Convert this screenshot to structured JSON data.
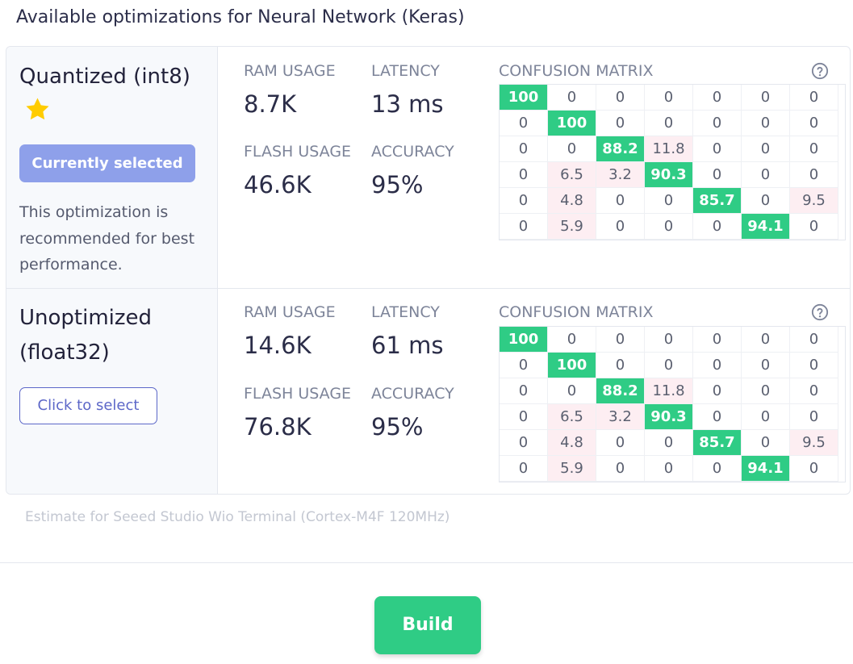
{
  "page": {
    "title": "Available optimizations for Neural Network (Keras)"
  },
  "labels": {
    "ram": "RAM USAGE",
    "latency": "LATENCY",
    "flash": "FLASH USAGE",
    "accuracy": "ACCURACY",
    "confusion_matrix": "CONFUSION MATRIX"
  },
  "optimizations": [
    {
      "name": "Quantized (int8)",
      "recommended": true,
      "selected": true,
      "button_label": "Currently selected",
      "note": "This optimization is recommended for best performance.",
      "ram": "8.7K",
      "latency": "13 ms",
      "flash": "46.6K",
      "accuracy": "95%",
      "confusion_matrix": [
        [
          "100",
          "0",
          "0",
          "0",
          "0",
          "0",
          "0"
        ],
        [
          "0",
          "100",
          "0",
          "0",
          "0",
          "0",
          "0"
        ],
        [
          "0",
          "0",
          "88.2",
          "11.8",
          "0",
          "0",
          "0"
        ],
        [
          "0",
          "6.5",
          "3.2",
          "90.3",
          "0",
          "0",
          "0"
        ],
        [
          "0",
          "4.8",
          "0",
          "0",
          "85.7",
          "0",
          "9.5"
        ],
        [
          "0",
          "5.9",
          "0",
          "0",
          "0",
          "94.1",
          "0"
        ]
      ]
    },
    {
      "name": "Unoptimized (float32)",
      "recommended": false,
      "selected": false,
      "button_label": "Click to select",
      "ram": "14.6K",
      "latency": "61 ms",
      "flash": "76.8K",
      "accuracy": "95%",
      "confusion_matrix": [
        [
          "100",
          "0",
          "0",
          "0",
          "0",
          "0",
          "0"
        ],
        [
          "0",
          "100",
          "0",
          "0",
          "0",
          "0",
          "0"
        ],
        [
          "0",
          "0",
          "88.2",
          "11.8",
          "0",
          "0",
          "0"
        ],
        [
          "0",
          "6.5",
          "3.2",
          "90.3",
          "0",
          "0",
          "0"
        ],
        [
          "0",
          "4.8",
          "0",
          "0",
          "85.7",
          "0",
          "9.5"
        ],
        [
          "0",
          "5.9",
          "0",
          "0",
          "0",
          "94.1",
          "0"
        ]
      ]
    }
  ],
  "footnote": "Estimate for Seeed Studio Wio Terminal (Cortex-M4F 120MHz)",
  "build_button": "Build",
  "colors": {
    "diagonal": "#2fcc85",
    "error": "#fdeef2",
    "selected_button": "#8ea0ea",
    "outline_button": "#5c67c8",
    "star": "#ffcc00"
  },
  "icons": {
    "star": "star-icon",
    "help": "help-circle-icon"
  }
}
